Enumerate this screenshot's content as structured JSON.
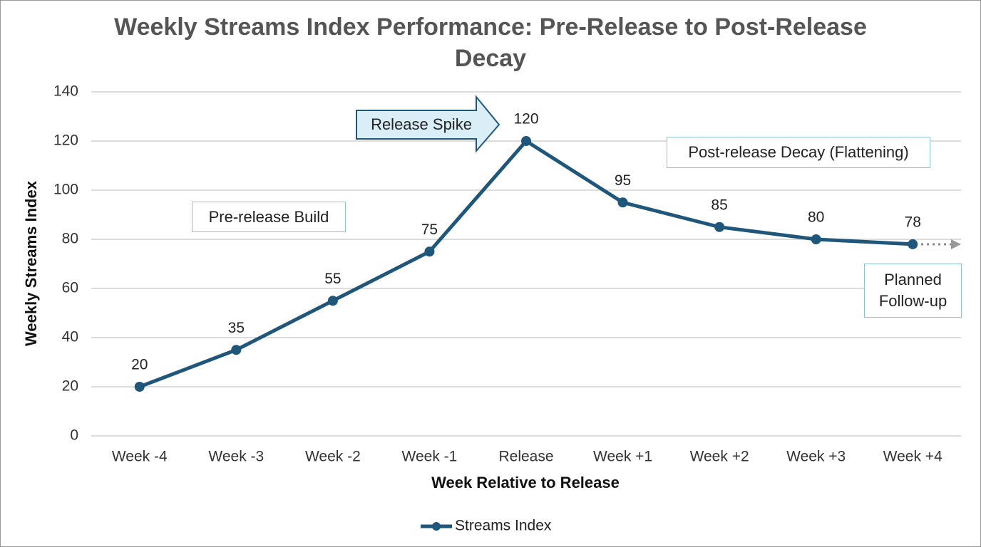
{
  "chart_data": {
    "type": "line",
    "title": "Weekly Streams Index Performance: Pre-Release to Post-Release Decay",
    "x_label": "Week Relative to Release",
    "y_label": "Weekly Streams Index",
    "categories": [
      "Week -4",
      "Week -3",
      "Week -2",
      "Week -1",
      "Release",
      "Week +1",
      "Week +2",
      "Week +3",
      "Week +4"
    ],
    "series": [
      {
        "name": "Streams Index",
        "color": "#1f567a",
        "values": [
          20,
          35,
          55,
          75,
          120,
          95,
          85,
          80,
          78
        ]
      }
    ],
    "ylim": [
      0,
      140
    ],
    "yticks": [
      0,
      20,
      40,
      60,
      80,
      100,
      120,
      140
    ],
    "grid": true,
    "legend": "bottom",
    "annotations": [
      "Release Spike",
      "Pre-release Build",
      "Post-release Decay (Flattening)",
      "Planned Follow-up"
    ]
  }
}
